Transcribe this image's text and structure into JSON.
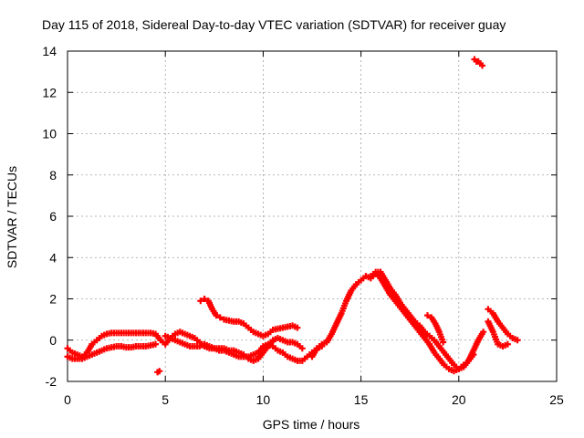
{
  "chart_data": {
    "type": "scatter",
    "title": "Day 115 of 2018, Sidereal Day-to-day VTEC variation (SDTVAR) for receiver guay",
    "xlabel": "GPS time / hours",
    "ylabel": "SDTVAR / TECUs",
    "xlim": [
      0,
      25
    ],
    "ylim": [
      -2,
      14
    ],
    "x_ticks": [
      "0",
      "5",
      "10",
      "15",
      "20",
      "25"
    ],
    "y_ticks": [
      "-2",
      "0",
      "2",
      "4",
      "6",
      "8",
      "10",
      "12",
      "14"
    ],
    "grid": true,
    "marker": "plus",
    "color": "#ff0000",
    "series": [
      {
        "name": "trace-1",
        "x": [
          0.0,
          0.25,
          0.5,
          0.75,
          1.0,
          1.25,
          1.5,
          1.75,
          2.0,
          2.25,
          2.5,
          2.75,
          3.0,
          3.25,
          3.5,
          3.75,
          4.0,
          4.25,
          4.5,
          4.75,
          5.0,
          5.25,
          5.5,
          5.75,
          6.0,
          6.25,
          6.5,
          6.75,
          7.0,
          7.25,
          7.5,
          7.75,
          8.0,
          8.25,
          8.5,
          8.75,
          9.0,
          9.25,
          9.5,
          9.75,
          10.0,
          10.25,
          10.5,
          10.75,
          11.0,
          11.25,
          11.5,
          11.75,
          12.0
        ],
        "y": [
          -0.4,
          -0.6,
          -0.7,
          -0.8,
          -0.6,
          -0.2,
          0.0,
          0.2,
          0.3,
          0.35,
          0.35,
          0.35,
          0.35,
          0.35,
          0.35,
          0.35,
          0.35,
          0.35,
          0.3,
          0.0,
          -0.2,
          0.1,
          0.3,
          0.4,
          0.3,
          0.2,
          0.1,
          -0.1,
          -0.3,
          -0.4,
          -0.4,
          -0.4,
          -0.4,
          -0.5,
          -0.5,
          -0.6,
          -0.7,
          -0.9,
          -1.0,
          -0.9,
          -0.6,
          -0.3,
          0.0,
          0.1,
          0.0,
          -0.1,
          -0.1,
          -0.2,
          -0.4
        ]
      },
      {
        "name": "trace-2",
        "x": [
          0.0,
          0.25,
          0.5,
          0.75,
          1.0,
          1.25,
          1.5,
          1.75,
          2.0,
          2.25,
          2.5,
          2.75,
          3.0,
          3.25,
          3.5,
          3.75,
          4.0,
          4.25,
          4.5
        ],
        "y": [
          -0.8,
          -0.9,
          -0.9,
          -0.9,
          -0.8,
          -0.7,
          -0.6,
          -0.5,
          -0.4,
          -0.35,
          -0.3,
          -0.3,
          -0.35,
          -0.35,
          -0.3,
          -0.3,
          -0.3,
          -0.25,
          -0.2
        ]
      },
      {
        "name": "trace-3",
        "x": [
          5.0,
          5.25,
          5.5,
          5.75,
          6.0,
          6.25,
          6.5,
          6.75,
          7.0,
          7.25,
          7.5,
          7.75,
          8.0,
          8.25,
          8.5,
          8.75,
          9.0,
          9.25,
          9.5,
          9.75,
          10.0,
          10.25,
          10.5,
          10.75,
          11.0,
          11.25,
          11.5,
          11.75,
          12.0,
          12.25,
          12.5,
          12.75,
          13.0
        ],
        "y": [
          0.2,
          0.1,
          0.0,
          -0.1,
          -0.2,
          -0.3,
          -0.3,
          -0.3,
          -0.2,
          -0.3,
          -0.4,
          -0.5,
          -0.5,
          -0.6,
          -0.7,
          -0.8,
          -0.8,
          -0.8,
          -0.7,
          -0.6,
          -0.3,
          -0.2,
          -0.3,
          -0.5,
          -0.6,
          -0.8,
          -0.9,
          -1.0,
          -1.0,
          -0.8,
          -0.6,
          -0.4,
          -0.3
        ]
      },
      {
        "name": "trace-4",
        "x": [
          6.8,
          7.0,
          7.2,
          7.4,
          7.6,
          7.8,
          8.0,
          8.25,
          8.5,
          8.75,
          9.0,
          9.25,
          9.5,
          9.75,
          10.0,
          10.25,
          10.5,
          10.75,
          11.0,
          11.25,
          11.5,
          11.75
        ],
        "y": [
          1.9,
          2.0,
          1.9,
          1.5,
          1.2,
          1.1,
          1.0,
          0.95,
          0.9,
          0.9,
          0.8,
          0.6,
          0.4,
          0.3,
          0.2,
          0.3,
          0.5,
          0.55,
          0.6,
          0.65,
          0.7,
          0.6
        ]
      },
      {
        "name": "trace-5",
        "x": [
          12.5,
          12.75,
          13.0,
          13.25,
          13.5,
          13.75,
          14.0,
          14.25,
          14.5,
          14.75,
          15.0,
          15.25,
          15.5,
          15.75,
          16.0,
          16.25,
          16.5,
          16.75,
          17.0,
          17.25,
          17.5,
          17.75,
          18.0,
          18.25,
          18.5,
          18.75,
          19.0,
          19.25,
          19.5,
          19.75,
          20.0,
          20.25,
          20.5,
          20.75,
          21.0,
          21.25
        ],
        "y": [
          -0.8,
          -0.4,
          -0.2,
          -0.1,
          0.3,
          0.8,
          1.3,
          1.9,
          2.4,
          2.7,
          2.9,
          3.1,
          3.0,
          3.2,
          3.0,
          2.6,
          2.2,
          1.9,
          1.6,
          1.3,
          1.0,
          0.7,
          0.4,
          0.1,
          -0.2,
          -0.6,
          -0.9,
          -1.2,
          -1.4,
          -1.5,
          -1.4,
          -1.2,
          -1.0,
          -0.5,
          0.0,
          0.4
        ]
      },
      {
        "name": "trace-6",
        "x": [
          15.5,
          15.75,
          16.0,
          16.25,
          16.5,
          16.75,
          17.0,
          17.25,
          17.5,
          17.75,
          18.0,
          18.25,
          18.5,
          18.75,
          19.0,
          19.25,
          19.5,
          19.75,
          20.0,
          20.25,
          20.5,
          20.75
        ],
        "y": [
          3.1,
          3.3,
          3.3,
          2.9,
          2.5,
          2.2,
          1.8,
          1.5,
          1.2,
          0.9,
          0.7,
          0.4,
          0.2,
          0.0,
          -0.3,
          -0.6,
          -0.9,
          -1.2,
          -1.4,
          -1.3,
          -1.0,
          -0.7
        ]
      },
      {
        "name": "trace-7",
        "x": [
          21.5,
          21.75,
          22.0,
          22.25,
          22.5,
          22.75,
          23.0
        ],
        "y": [
          1.5,
          1.3,
          0.9,
          0.6,
          0.3,
          0.1,
          0.0
        ]
      },
      {
        "name": "trace-8",
        "x": [
          21.5,
          21.75,
          22.0,
          22.25,
          22.5
        ],
        "y": [
          0.9,
          0.4,
          -0.2,
          -0.3,
          -0.2
        ]
      },
      {
        "name": "trace-9",
        "x": [
          20.8,
          20.9,
          21.0,
          21.1,
          21.2
        ],
        "y": [
          13.6,
          13.5,
          13.5,
          13.4,
          13.3
        ]
      },
      {
        "name": "trace-10",
        "x": [
          4.6,
          4.7
        ],
        "y": [
          -1.55,
          -1.5
        ]
      },
      {
        "name": "trace-11",
        "x": [
          18.4,
          18.6,
          18.8,
          19.0,
          19.2
        ],
        "y": [
          1.2,
          1.1,
          0.8,
          0.4,
          -0.1
        ]
      }
    ]
  }
}
